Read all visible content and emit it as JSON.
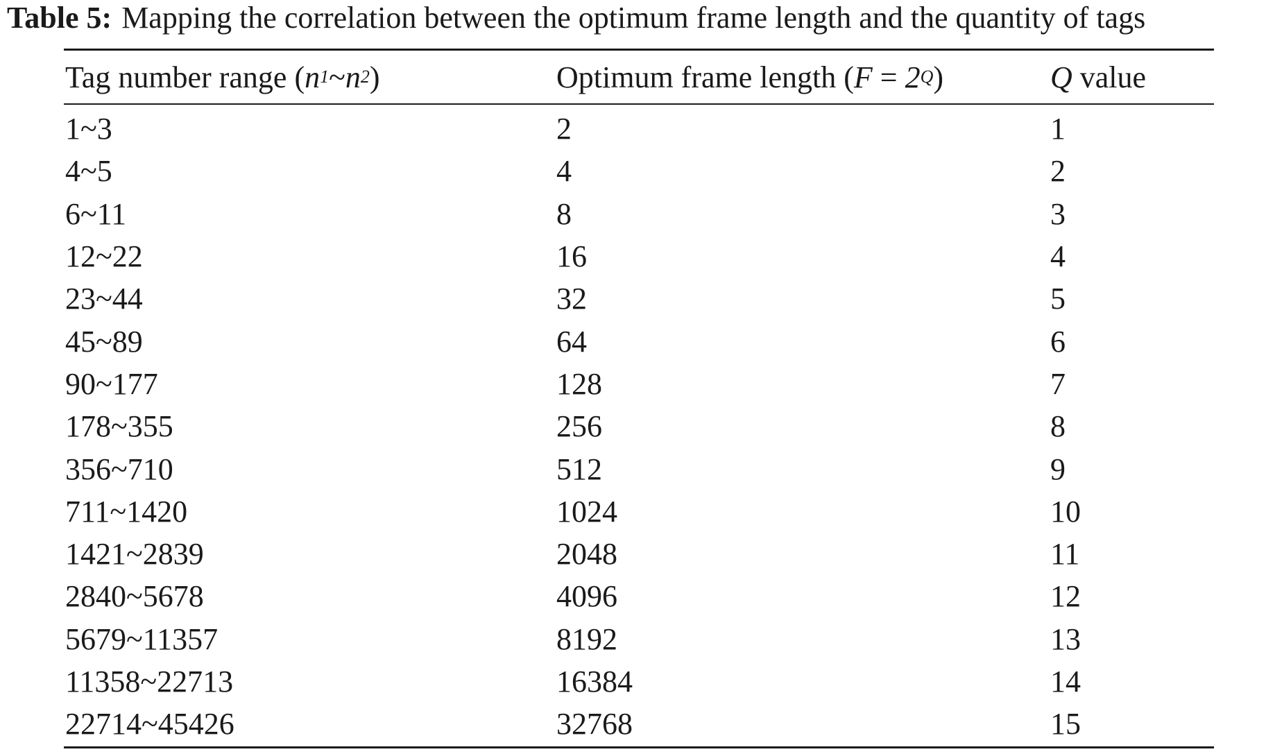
{
  "caption": {
    "label": "Table 5:",
    "text": "Mapping the correlation between the optimum frame length and the quantity of tags"
  },
  "table": {
    "headers": {
      "col1": {
        "text": "Tag number range (",
        "var1": "n",
        "sub1": "1",
        "sep": "~",
        "var2": "n",
        "sub2": "2",
        "close": ")"
      },
      "col2": {
        "text": "Optimum frame length (",
        "var": "F",
        "eq": " = ",
        "base": "2",
        "exp": "Q",
        "close": ")"
      },
      "col3": {
        "var": "Q",
        "text": " value"
      }
    },
    "rows": [
      {
        "range": "1~3",
        "frame": "2",
        "q": "1"
      },
      {
        "range": "4~5",
        "frame": "4",
        "q": "2"
      },
      {
        "range": "6~11",
        "frame": "8",
        "q": "3"
      },
      {
        "range": "12~22",
        "frame": "16",
        "q": "4"
      },
      {
        "range": "23~44",
        "frame": "32",
        "q": "5"
      },
      {
        "range": "45~89",
        "frame": "64",
        "q": "6"
      },
      {
        "range": "90~177",
        "frame": "128",
        "q": "7"
      },
      {
        "range": "178~355",
        "frame": "256",
        "q": "8"
      },
      {
        "range": "356~710",
        "frame": "512",
        "q": "9"
      },
      {
        "range": "711~1420",
        "frame": "1024",
        "q": "10"
      },
      {
        "range": "1421~2839",
        "frame": "2048",
        "q": "11"
      },
      {
        "range": "2840~5678",
        "frame": "4096",
        "q": "12"
      },
      {
        "range": "5679~11357",
        "frame": "8192",
        "q": "13"
      },
      {
        "range": "11358~22713",
        "frame": "16384",
        "q": "14"
      },
      {
        "range": "22714~45426",
        "frame": "32768",
        "q": "15"
      }
    ]
  }
}
